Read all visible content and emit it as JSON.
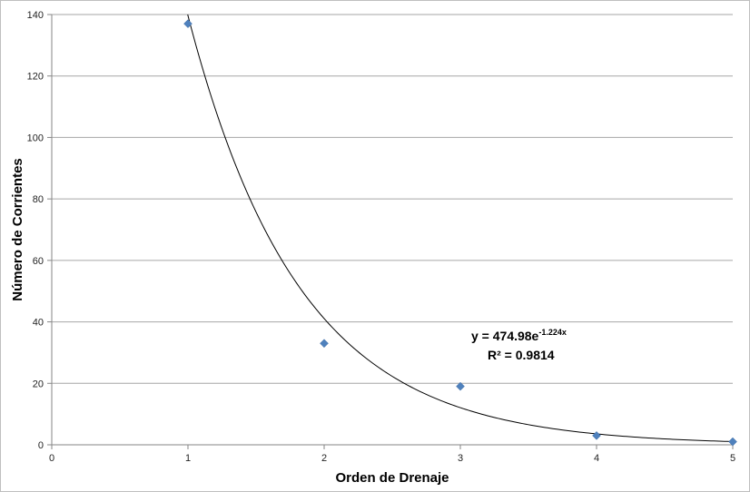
{
  "chart_data": {
    "type": "scatter",
    "xlabel": "Orden de Drenaje",
    "ylabel": "Número de Corrientes",
    "xlim": [
      0,
      5
    ],
    "ylim": [
      0,
      140
    ],
    "xticks": [
      "0",
      "1",
      "2",
      "3",
      "4",
      "5"
    ],
    "yticks": [
      "0",
      "20",
      "40",
      "60",
      "80",
      "100",
      "120",
      "140"
    ],
    "grid": true,
    "legend": "none",
    "series": [
      {
        "color": "#4f81bd",
        "marker": "diamond",
        "x": [
          1,
          2,
          3,
          4,
          5
        ],
        "y": [
          137,
          33,
          19,
          3,
          1
        ]
      }
    ],
    "trendline": {
      "type": "exponential",
      "a": 474.98,
      "b": -1.224,
      "color": "#000000",
      "equation_prefix": "y = 474.98e",
      "equation_exponent": "-1.224x",
      "r_squared_label": "R² = 0.9814"
    },
    "colors": {
      "gridline": "#a6a6a6",
      "axis": "#868686"
    }
  }
}
